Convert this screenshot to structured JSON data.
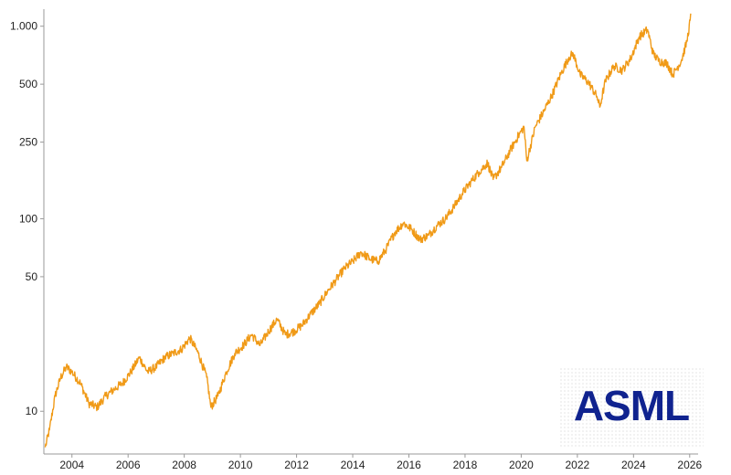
{
  "chart_data": {
    "type": "line",
    "title": "",
    "xlabel": "",
    "ylabel": "",
    "yscale": "log",
    "ylim": [
      6,
      1200
    ],
    "xlim": [
      2003.0,
      2026.3
    ],
    "grid": false,
    "legend": "none",
    "x_ticks": [
      "2004",
      "2006",
      "2008",
      "2010",
      "2012",
      "2014",
      "2016",
      "2018",
      "2020",
      "2022",
      "2024",
      "2026"
    ],
    "y_ticks": [
      {
        "value": 10,
        "label": "10"
      },
      {
        "value": 50,
        "label": "50"
      },
      {
        "value": 100,
        "label": "100"
      },
      {
        "value": 250,
        "label": "250"
      },
      {
        "value": 500,
        "label": "500"
      },
      {
        "value": 1000,
        "label": "1.000"
      }
    ],
    "series": [
      {
        "color": "#f09a17",
        "x": [
          2003.05,
          2003.2,
          2003.4,
          2003.6,
          2003.8,
          2004.0,
          2004.3,
          2004.6,
          2004.9,
          2005.2,
          2005.5,
          2005.8,
          2006.1,
          2006.4,
          2006.7,
          2007.0,
          2007.3,
          2007.6,
          2007.9,
          2008.2,
          2008.5,
          2008.8,
          2008.95,
          2009.2,
          2009.5,
          2009.8,
          2010.1,
          2010.4,
          2010.7,
          2011.0,
          2011.3,
          2011.6,
          2011.9,
          2012.2,
          2012.5,
          2012.8,
          2013.1,
          2013.4,
          2013.7,
          2014.0,
          2014.3,
          2014.6,
          2014.9,
          2015.2,
          2015.5,
          2015.8,
          2016.1,
          2016.4,
          2016.7,
          2017.0,
          2017.3,
          2017.6,
          2017.9,
          2018.2,
          2018.5,
          2018.8,
          2019.0,
          2019.3,
          2019.6,
          2019.9,
          2020.1,
          2020.2,
          2020.5,
          2020.8,
          2021.1,
          2021.4,
          2021.7,
          2021.85,
          2022.1,
          2022.4,
          2022.7,
          2022.8,
          2023.0,
          2023.3,
          2023.6,
          2023.9,
          2024.2,
          2024.5,
          2024.7,
          2024.9,
          2025.2,
          2025.4,
          2025.7,
          2025.9,
          2026.05
        ],
        "values": [
          6.5,
          8,
          12,
          15,
          17,
          16,
          14,
          11,
          10.5,
          12,
          13,
          14,
          16,
          19,
          16,
          17,
          19,
          20,
          21,
          24,
          20,
          15,
          10.5,
          12,
          16,
          20,
          22,
          25,
          22,
          26,
          30,
          25,
          26,
          28,
          32,
          36,
          42,
          48,
          55,
          60,
          67,
          62,
          60,
          70,
          85,
          95,
          88,
          78,
          82,
          92,
          100,
          115,
          135,
          155,
          175,
          195,
          160,
          185,
          225,
          270,
          300,
          200,
          300,
          360,
          440,
          560,
          690,
          720,
          560,
          510,
          430,
          380,
          520,
          620,
          590,
          680,
          880,
          960,
          720,
          660,
          640,
          560,
          660,
          830,
          1150
        ]
      }
    ]
  },
  "logo": {
    "text": "ASML"
  }
}
